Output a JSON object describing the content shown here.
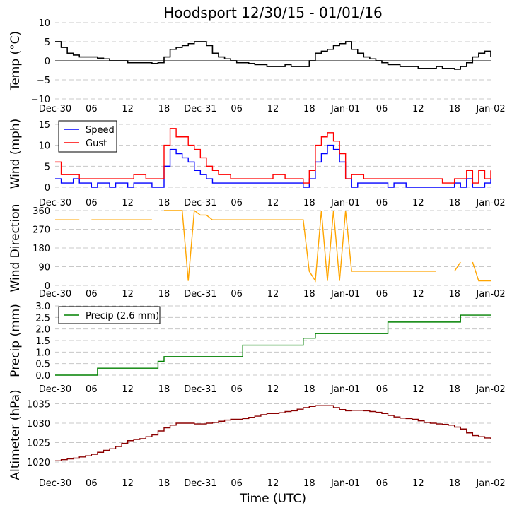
{
  "title": "Hoodsport 12/30/15 - 01/01/16",
  "xlabel": "Time (UTC)",
  "x_ticks": [
    {
      "h": 0,
      "label": "Dec-30"
    },
    {
      "h": 6,
      "label": "06"
    },
    {
      "h": 12,
      "label": "12"
    },
    {
      "h": 18,
      "label": "18"
    },
    {
      "h": 24,
      "label": "Dec-31"
    },
    {
      "h": 30,
      "label": "06"
    },
    {
      "h": 36,
      "label": "12"
    },
    {
      "h": 42,
      "label": "18"
    },
    {
      "h": 48,
      "label": "Jan-01"
    },
    {
      "h": 54,
      "label": "06"
    },
    {
      "h": 60,
      "label": "12"
    },
    {
      "h": 66,
      "label": "18"
    },
    {
      "h": 72,
      "label": "Jan-02"
    }
  ],
  "chart_data": [
    {
      "type": "line",
      "id": "temp",
      "ylabel": "Temp (°C)",
      "ylim": [
        -10,
        10
      ],
      "yticks": [
        {
          "v": 10,
          "label": "10"
        },
        {
          "v": 5,
          "label": "5"
        },
        {
          "v": 0,
          "label": "0"
        },
        {
          "v": -5,
          "label": "−5"
        },
        {
          "v": -10,
          "label": "−10"
        }
      ],
      "zero_line": true,
      "xlim": [
        0,
        72
      ],
      "grid": true,
      "series": [
        {
          "name": "Temp",
          "color": "#000000",
          "step": true,
          "values": [
            5,
            3.5,
            2,
            1.5,
            1,
            1,
            1,
            0.7,
            0.5,
            0,
            0,
            0,
            -0.5,
            -0.5,
            -0.5,
            -0.5,
            -0.7,
            -0.5,
            1,
            3,
            3.5,
            4,
            4.5,
            5,
            5,
            4,
            2,
            1,
            0.5,
            0,
            -0.5,
            -0.5,
            -0.7,
            -1,
            -1,
            -1.5,
            -1.5,
            -1.5,
            -1,
            -1.5,
            -1.5,
            -1.5,
            0,
            2,
            2.5,
            3,
            4,
            4.5,
            5,
            3,
            2,
            1,
            0.5,
            0,
            -0.5,
            -1,
            -1,
            -1.5,
            -1.5,
            -1.5,
            -2,
            -2,
            -2,
            -1.5,
            -2,
            -2,
            -2.2,
            -1.5,
            -0.5,
            1,
            2,
            2.5,
            1
          ]
        }
      ]
    },
    {
      "type": "line",
      "id": "wind",
      "ylabel": "Wind (mph)",
      "ylim": [
        0,
        16
      ],
      "yticks": [
        {
          "v": 15,
          "label": "15"
        },
        {
          "v": 10,
          "label": "10"
        },
        {
          "v": 5,
          "label": "5"
        },
        {
          "v": 0,
          "label": "0"
        }
      ],
      "xlim": [
        0,
        72
      ],
      "grid": true,
      "legend": "top-left",
      "series": [
        {
          "name": "Speed",
          "color": "#0000ff",
          "step": true,
          "values": [
            2,
            1,
            1,
            2,
            1,
            1,
            0,
            1,
            1,
            0,
            1,
            1,
            0,
            1,
            1,
            1,
            0,
            0,
            5,
            9,
            8,
            7,
            6,
            4,
            3,
            2,
            1,
            1,
            1,
            1,
            1,
            1,
            1,
            1,
            1,
            1,
            1,
            1,
            1,
            1,
            1,
            0,
            2,
            6,
            8,
            10,
            9,
            6,
            2,
            0,
            1,
            1,
            1,
            1,
            1,
            0,
            1,
            1,
            0,
            0,
            0,
            0,
            0,
            0,
            0,
            0,
            1,
            0,
            2,
            0,
            0,
            1,
            2
          ]
        },
        {
          "name": "Gust",
          "color": "#ff0000",
          "step": true,
          "values": [
            6,
            3,
            3,
            3,
            2,
            2,
            2,
            2,
            2,
            2,
            2,
            2,
            2,
            3,
            3,
            2,
            2,
            2,
            10,
            14,
            12,
            12,
            10,
            9,
            7,
            5,
            4,
            3,
            3,
            2,
            2,
            2,
            2,
            2,
            2,
            2,
            3,
            3,
            2,
            2,
            2,
            1,
            4,
            10,
            12,
            13,
            11,
            8,
            2,
            3,
            3,
            2,
            2,
            2,
            2,
            2,
            2,
            2,
            2,
            2,
            2,
            2,
            2,
            2,
            1,
            1,
            2,
            2,
            4,
            1,
            4,
            2,
            4
          ]
        }
      ]
    },
    {
      "type": "line",
      "id": "direction",
      "ylabel": "Wind Direction",
      "ylim": [
        0,
        360
      ],
      "yticks": [
        {
          "v": 360,
          "label": "360"
        },
        {
          "v": 270,
          "label": "270"
        },
        {
          "v": 180,
          "label": "180"
        },
        {
          "v": 90,
          "label": "90"
        },
        {
          "v": 0,
          "label": "0"
        }
      ],
      "xlim": [
        0,
        72
      ],
      "grid": true,
      "series": [
        {
          "name": "Direction",
          "color": "#ffa500",
          "step": false,
          "values": [
            315,
            315,
            315,
            315,
            315,
            null,
            315,
            315,
            315,
            315,
            315,
            315,
            315,
            315,
            315,
            315,
            315,
            null,
            360,
            360,
            360,
            360,
            22,
            360,
            338,
            338,
            315,
            315,
            315,
            315,
            315,
            315,
            315,
            315,
            315,
            315,
            315,
            315,
            315,
            315,
            315,
            315,
            68,
            22,
            360,
            22,
            360,
            22,
            360,
            68,
            68,
            68,
            68,
            68,
            68,
            68,
            68,
            68,
            68,
            68,
            68,
            68,
            68,
            68,
            null,
            null,
            68,
            112,
            null,
            112,
            22,
            22,
            22
          ]
        }
      ]
    },
    {
      "type": "line",
      "id": "precip",
      "ylabel": "Precip (mm)",
      "ylim": [
        0,
        3
      ],
      "yticks": [
        {
          "v": 3,
          "label": "3.0"
        },
        {
          "v": 2.5,
          "label": "2.5"
        },
        {
          "v": 2,
          "label": "2.0"
        },
        {
          "v": 1.5,
          "label": "1.5"
        },
        {
          "v": 1,
          "label": "1.0"
        },
        {
          "v": 0.5,
          "label": "0.5"
        },
        {
          "v": 0,
          "label": "0.0"
        }
      ],
      "xlim": [
        0,
        72
      ],
      "grid": true,
      "legend": "top-left",
      "series": [
        {
          "name": "Precip (2.6 mm)",
          "color": "#008000",
          "step": true,
          "values": [
            0,
            0,
            0,
            0,
            0,
            0,
            0,
            0.3,
            0.3,
            0.3,
            0.3,
            0.3,
            0.3,
            0.3,
            0.3,
            0.3,
            0.3,
            0.6,
            0.8,
            0.8,
            0.8,
            0.8,
            0.8,
            0.8,
            0.8,
            0.8,
            0.8,
            0.8,
            0.8,
            0.8,
            0.8,
            1.3,
            1.3,
            1.3,
            1.3,
            1.3,
            1.3,
            1.3,
            1.3,
            1.3,
            1.3,
            1.6,
            1.6,
            1.8,
            1.8,
            1.8,
            1.8,
            1.8,
            1.8,
            1.8,
            1.8,
            1.8,
            1.8,
            1.8,
            1.8,
            2.3,
            2.3,
            2.3,
            2.3,
            2.3,
            2.3,
            2.3,
            2.3,
            2.3,
            2.3,
            2.3,
            2.3,
            2.6,
            2.6,
            2.6,
            2.6,
            2.6,
            2.6
          ]
        }
      ]
    },
    {
      "type": "line",
      "id": "altimeter",
      "ylabel": "Altimeter (hPa)",
      "ylim": [
        1018,
        1036
      ],
      "yticks": [
        {
          "v": 1035,
          "label": "1035"
        },
        {
          "v": 1030,
          "label": "1030"
        },
        {
          "v": 1025,
          "label": "1025"
        },
        {
          "v": 1020,
          "label": "1020"
        }
      ],
      "xlim": [
        0,
        72
      ],
      "grid": true,
      "series": [
        {
          "name": "Altimeter",
          "color": "#8b0000",
          "step": true,
          "values": [
            1020.3,
            1020.6,
            1020.8,
            1021,
            1021.3,
            1021.6,
            1022,
            1022.5,
            1023,
            1023.4,
            1024,
            1024.8,
            1025.5,
            1025.8,
            1026,
            1026.5,
            1027,
            1028,
            1028.8,
            1029.5,
            1030,
            1030,
            1030,
            1029.8,
            1029.8,
            1030,
            1030.2,
            1030.5,
            1030.8,
            1031,
            1031,
            1031.2,
            1031.5,
            1031.8,
            1032.2,
            1032.5,
            1032.5,
            1032.7,
            1033,
            1033.2,
            1033.6,
            1034,
            1034.3,
            1034.5,
            1034.5,
            1034.5,
            1034,
            1033.5,
            1033.2,
            1033.3,
            1033.3,
            1033.2,
            1033,
            1032.8,
            1032.5,
            1032,
            1031.6,
            1031.3,
            1031.2,
            1031,
            1030.6,
            1030.2,
            1030,
            1029.8,
            1029.7,
            1029.5,
            1029,
            1028.5,
            1027.5,
            1026.8,
            1026.5,
            1026.2,
            1026
          ]
        }
      ]
    }
  ]
}
